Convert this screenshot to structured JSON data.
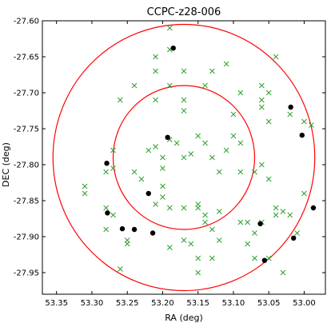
{
  "chart_data": {
    "type": "scatter",
    "title": "CCPC-z28-006",
    "xlabel": "RA (deg)",
    "ylabel": "DEC (deg)",
    "xlim": [
      53.37,
      52.97
    ],
    "ylim": [
      -27.98,
      -27.6
    ],
    "x_inverted": true,
    "grid": false,
    "x_ticks": [
      53.35,
      53.3,
      53.25,
      53.2,
      53.15,
      53.1,
      53.05,
      53.0
    ],
    "x_tick_labels": [
      "53.35",
      "53.30",
      "53.25",
      "53.20",
      "53.15",
      "53.10",
      "53.05",
      "53.00"
    ],
    "y_ticks": [
      -27.6,
      -27.65,
      -27.7,
      -27.75,
      -27.8,
      -27.85,
      -27.9,
      -27.95
    ],
    "y_tick_labels": [
      "-27.60",
      "-27.65",
      "-27.70",
      "-27.75",
      "-27.80",
      "-27.85",
      "-27.90",
      "-27.95"
    ],
    "circles": [
      {
        "center_ra": 53.17,
        "center_dec": -27.79,
        "radius_deg": 0.1,
        "color": "#ff0000"
      },
      {
        "center_ra": 53.17,
        "center_dec": -27.79,
        "radius_deg": 0.185,
        "color": "#ff0000"
      }
    ],
    "series": [
      {
        "marker": "x",
        "color": "#2ca02c",
        "points": [
          [
            53.19,
            -27.61
          ],
          [
            53.19,
            -27.64
          ],
          [
            53.21,
            -27.65
          ],
          [
            53.17,
            -27.67
          ],
          [
            53.21,
            -27.67
          ],
          [
            53.13,
            -27.67
          ],
          [
            53.11,
            -27.66
          ],
          [
            53.04,
            -27.65
          ],
          [
            53.26,
            -27.71
          ],
          [
            53.24,
            -27.69
          ],
          [
            53.21,
            -27.71
          ],
          [
            53.17,
            -27.71
          ],
          [
            53.17,
            -27.725
          ],
          [
            53.19,
            -27.69
          ],
          [
            53.14,
            -27.69
          ],
          [
            53.09,
            -27.7
          ],
          [
            53.06,
            -27.69
          ],
          [
            53.05,
            -27.7
          ],
          [
            53.06,
            -27.71
          ],
          [
            53.1,
            -27.73
          ],
          [
            53.05,
            -27.74
          ],
          [
            53.06,
            -27.72
          ],
          [
            53.0,
            -27.74
          ],
          [
            52.99,
            -27.745
          ],
          [
            53.02,
            -27.73
          ],
          [
            53.19,
            -27.765
          ],
          [
            53.18,
            -27.77
          ],
          [
            53.21,
            -27.775
          ],
          [
            53.22,
            -27.78
          ],
          [
            53.16,
            -27.785
          ],
          [
            53.17,
            -27.79
          ],
          [
            53.13,
            -27.79
          ],
          [
            53.2,
            -27.79
          ],
          [
            53.11,
            -27.78
          ],
          [
            53.1,
            -27.76
          ],
          [
            53.09,
            -27.77
          ],
          [
            53.15,
            -27.76
          ],
          [
            53.14,
            -27.77
          ],
          [
            53.12,
            -27.81
          ],
          [
            53.09,
            -27.81
          ],
          [
            53.2,
            -27.805
          ],
          [
            53.24,
            -27.81
          ],
          [
            53.27,
            -27.805
          ],
          [
            53.27,
            -27.78
          ],
          [
            53.28,
            -27.81
          ],
          [
            53.31,
            -27.83
          ],
          [
            53.31,
            -27.84
          ],
          [
            53.23,
            -27.82
          ],
          [
            53.2,
            -27.83
          ],
          [
            53.2,
            -27.845
          ],
          [
            53.21,
            -27.855
          ],
          [
            53.19,
            -27.86
          ],
          [
            53.17,
            -27.86
          ],
          [
            53.15,
            -27.86
          ],
          [
            53.15,
            -27.855
          ],
          [
            53.12,
            -27.865
          ],
          [
            53.14,
            -27.87
          ],
          [
            53.14,
            -27.88
          ],
          [
            53.13,
            -27.89
          ],
          [
            53.09,
            -27.88
          ],
          [
            53.08,
            -27.88
          ],
          [
            53.04,
            -27.86
          ],
          [
            53.04,
            -27.87
          ],
          [
            53.03,
            -27.865
          ],
          [
            53.02,
            -27.87
          ],
          [
            53.0,
            -27.84
          ],
          [
            53.06,
            -27.88
          ],
          [
            53.07,
            -27.895
          ],
          [
            53.08,
            -27.91
          ],
          [
            53.07,
            -27.93
          ],
          [
            53.05,
            -27.93
          ],
          [
            53.03,
            -27.95
          ],
          [
            53.01,
            -27.895
          ],
          [
            53.12,
            -27.905
          ],
          [
            53.13,
            -27.93
          ],
          [
            53.15,
            -27.95
          ],
          [
            53.15,
            -27.93
          ],
          [
            53.16,
            -27.91
          ],
          [
            53.19,
            -27.915
          ],
          [
            53.17,
            -27.905
          ],
          [
            53.26,
            -27.945
          ],
          [
            53.25,
            -27.91
          ],
          [
            53.25,
            -27.905
          ],
          [
            53.27,
            -27.87
          ],
          [
            53.28,
            -27.86
          ],
          [
            53.28,
            -27.89
          ],
          [
            53.05,
            -27.82
          ],
          [
            53.06,
            -27.8
          ],
          [
            53.07,
            -27.81
          ]
        ]
      },
      {
        "marker": "o",
        "color": "#000000",
        "points": [
          [
            53.185,
            -27.638
          ],
          [
            53.019,
            -27.72
          ],
          [
            53.003,
            -27.759
          ],
          [
            53.193,
            -27.762
          ],
          [
            53.279,
            -27.798
          ],
          [
            53.22,
            -27.84
          ],
          [
            53.278,
            -27.867
          ],
          [
            53.257,
            -27.889
          ],
          [
            53.24,
            -27.89
          ],
          [
            53.214,
            -27.895
          ],
          [
            53.062,
            -27.882
          ],
          [
            52.987,
            -27.86
          ],
          [
            53.015,
            -27.902
          ],
          [
            53.056,
            -27.933
          ]
        ]
      }
    ]
  }
}
